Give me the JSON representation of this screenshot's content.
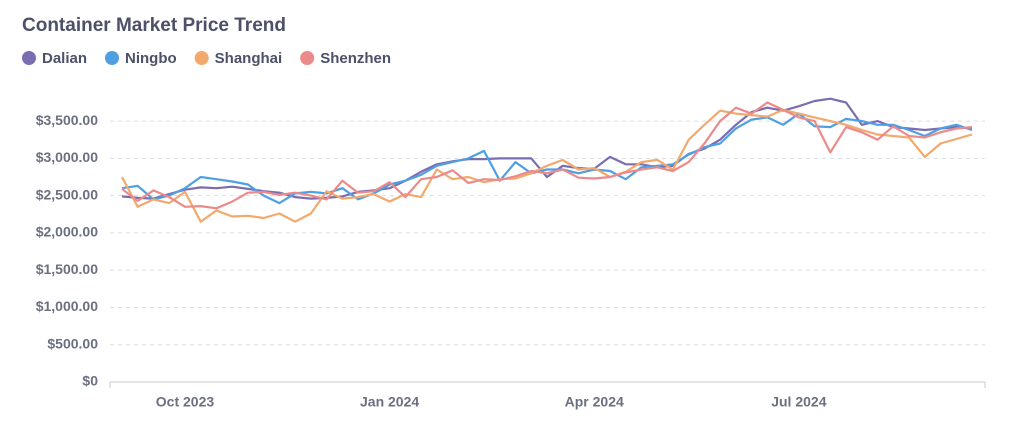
{
  "chart_data": {
    "type": "line",
    "title": "Container Market Price Trend",
    "categories": [
      null,
      null,
      null,
      null,
      "Oct 2023",
      null,
      null,
      null,
      null,
      null,
      null,
      null,
      null,
      null,
      null,
      null,
      null,
      "Jan 2024",
      null,
      null,
      null,
      null,
      null,
      null,
      null,
      null,
      null,
      null,
      null,
      null,
      "Apr 2024",
      null,
      null,
      null,
      null,
      null,
      null,
      null,
      null,
      null,
      null,
      null,
      null,
      "Jul 2024",
      null,
      null,
      null,
      null,
      null,
      null,
      null,
      null,
      null,
      null,
      null
    ],
    "series": [
      {
        "name": "Dalian",
        "color": "#7a6db0",
        "values": [
          2490,
          2470,
          2460,
          2520,
          2580,
          2610,
          2600,
          2620,
          2590,
          2560,
          2540,
          2480,
          2460,
          2470,
          2490,
          2550,
          2570,
          2600,
          2700,
          2820,
          2920,
          2960,
          2990,
          2990,
          3000,
          3000,
          3000,
          2750,
          2900,
          2870,
          2860,
          3020,
          2920,
          2920,
          2880,
          2900,
          3060,
          3130,
          3250,
          3450,
          3620,
          3680,
          3640,
          3700,
          3770,
          3800,
          3750,
          3450,
          3500,
          3420,
          3400,
          3380,
          3400,
          3420,
          3400
        ]
      },
      {
        "name": "Ningbo",
        "color": "#4f9fe3",
        "values": [
          2600,
          2630,
          2450,
          2500,
          2600,
          2750,
          2720,
          2690,
          2650,
          2500,
          2400,
          2530,
          2550,
          2530,
          2600,
          2450,
          2530,
          2650,
          2700,
          2780,
          2900,
          2950,
          3000,
          3100,
          2700,
          2950,
          2800,
          2850,
          2850,
          2800,
          2850,
          2830,
          2720,
          2880,
          2900,
          2920,
          3050,
          3150,
          3200,
          3400,
          3520,
          3550,
          3450,
          3600,
          3430,
          3420,
          3530,
          3500,
          3450,
          3450,
          3380,
          3300,
          3400,
          3450,
          3380
        ]
      },
      {
        "name": "Shanghai",
        "color": "#f2a96b",
        "values": [
          2750,
          2350,
          2450,
          2400,
          2550,
          2150,
          2300,
          2220,
          2230,
          2200,
          2260,
          2150,
          2260,
          2560,
          2460,
          2480,
          2520,
          2420,
          2520,
          2480,
          2850,
          2720,
          2750,
          2680,
          2720,
          2730,
          2800,
          2900,
          2980,
          2850,
          2870,
          2750,
          2820,
          2950,
          2980,
          2850,
          3250,
          3450,
          3640,
          3600,
          3580,
          3560,
          3650,
          3600,
          3550,
          3500,
          3450,
          3380,
          3320,
          3300,
          3280,
          3020,
          3200,
          3260,
          3320
        ]
      },
      {
        "name": "Shenzhen",
        "color": "#ec8a8a",
        "values": [
          2590,
          2430,
          2570,
          2480,
          2350,
          2360,
          2330,
          2420,
          2540,
          2550,
          2510,
          2540,
          2500,
          2450,
          2700,
          2540,
          2560,
          2680,
          2480,
          2720,
          2750,
          2840,
          2670,
          2720,
          2710,
          2760,
          2830,
          2800,
          2850,
          2740,
          2730,
          2750,
          2810,
          2850,
          2880,
          2830,
          2950,
          3200,
          3500,
          3680,
          3600,
          3750,
          3650,
          3550,
          3500,
          3080,
          3420,
          3350,
          3250,
          3430,
          3300,
          3280,
          3350,
          3400,
          3420
        ]
      }
    ],
    "ylim": [
      0,
      3850
    ],
    "yticks": [
      {
        "value": 0,
        "label": "$0"
      },
      {
        "value": 500,
        "label": "$500.00"
      },
      {
        "value": 1000,
        "label": "$1,000.00"
      },
      {
        "value": 1500,
        "label": "$1,500.00"
      },
      {
        "value": 2000,
        "label": "$2,000.00"
      },
      {
        "value": 2500,
        "label": "$2,500.00"
      },
      {
        "value": 3000,
        "label": "$3,000.00"
      },
      {
        "value": 3500,
        "label": "$3,500.00"
      }
    ],
    "grid": true
  }
}
